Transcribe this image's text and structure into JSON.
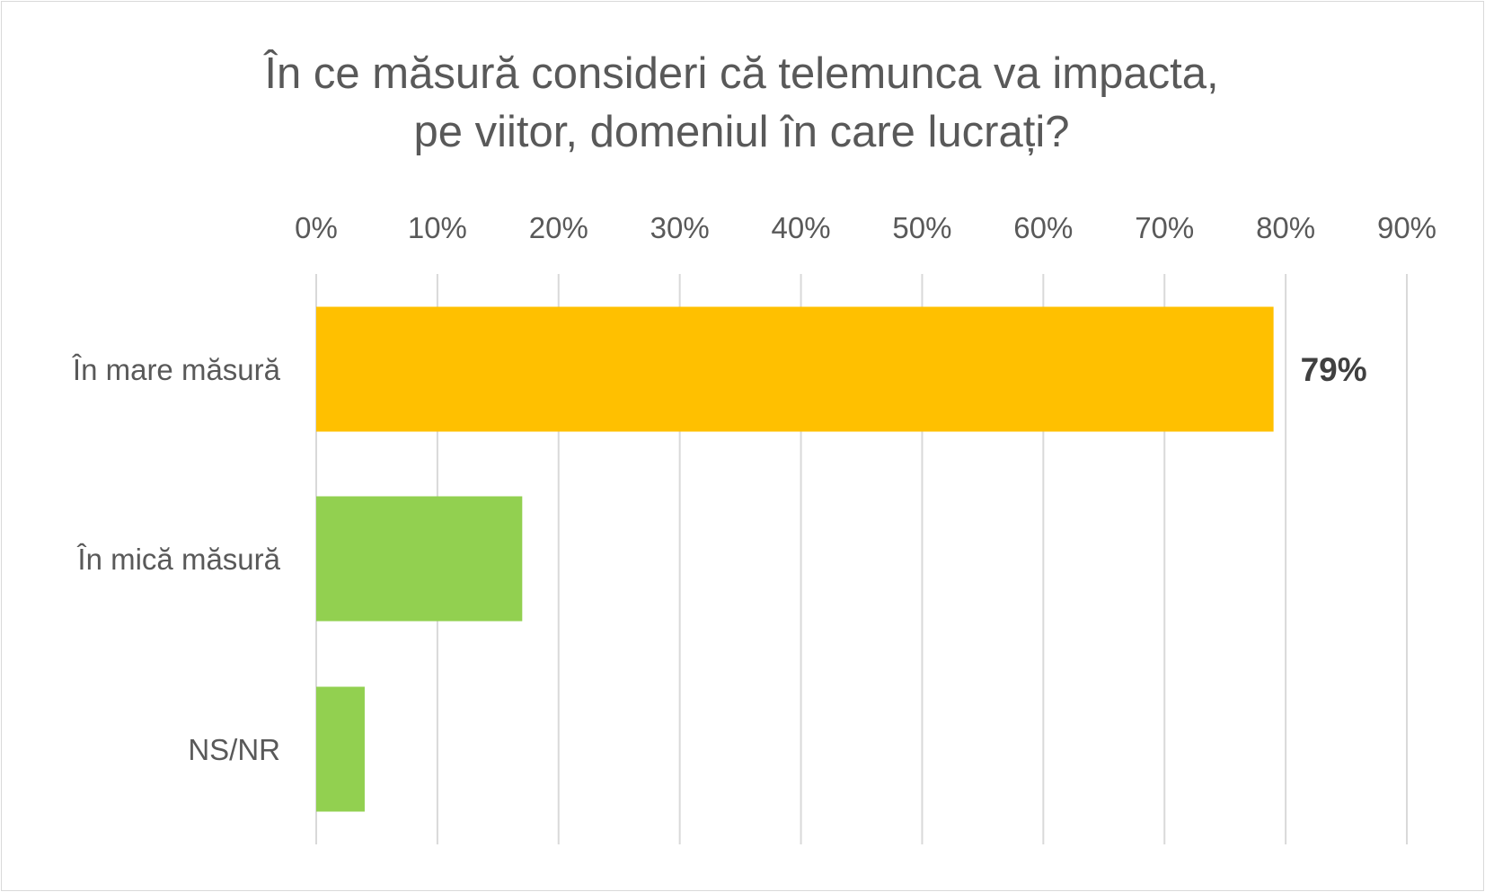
{
  "chart_data": {
    "type": "bar",
    "orientation": "horizontal",
    "title_lines": [
      "În ce măsură consideri că telemunca va impacta,",
      "pe viitor, domeniul în care lucrați?"
    ],
    "categories": [
      "În mare măsură",
      "În mică măsură",
      "NS/NR"
    ],
    "values": [
      79,
      17,
      4
    ],
    "value_unit": "%",
    "bar_colors": [
      "#FFC000",
      "#92D050",
      "#92D050"
    ],
    "data_labels": [
      "79%",
      "",
      ""
    ],
    "xlim": [
      0,
      90
    ],
    "x_ticks": [
      0,
      10,
      20,
      30,
      40,
      50,
      60,
      70,
      80,
      90
    ],
    "x_tick_labels": [
      "0%",
      "10%",
      "20%",
      "30%",
      "40%",
      "50%",
      "60%",
      "70%",
      "80%",
      "90%"
    ],
    "x_axis_position": "top",
    "grid": true,
    "gridline_color": "#d9d9d9",
    "legend": "none"
  }
}
